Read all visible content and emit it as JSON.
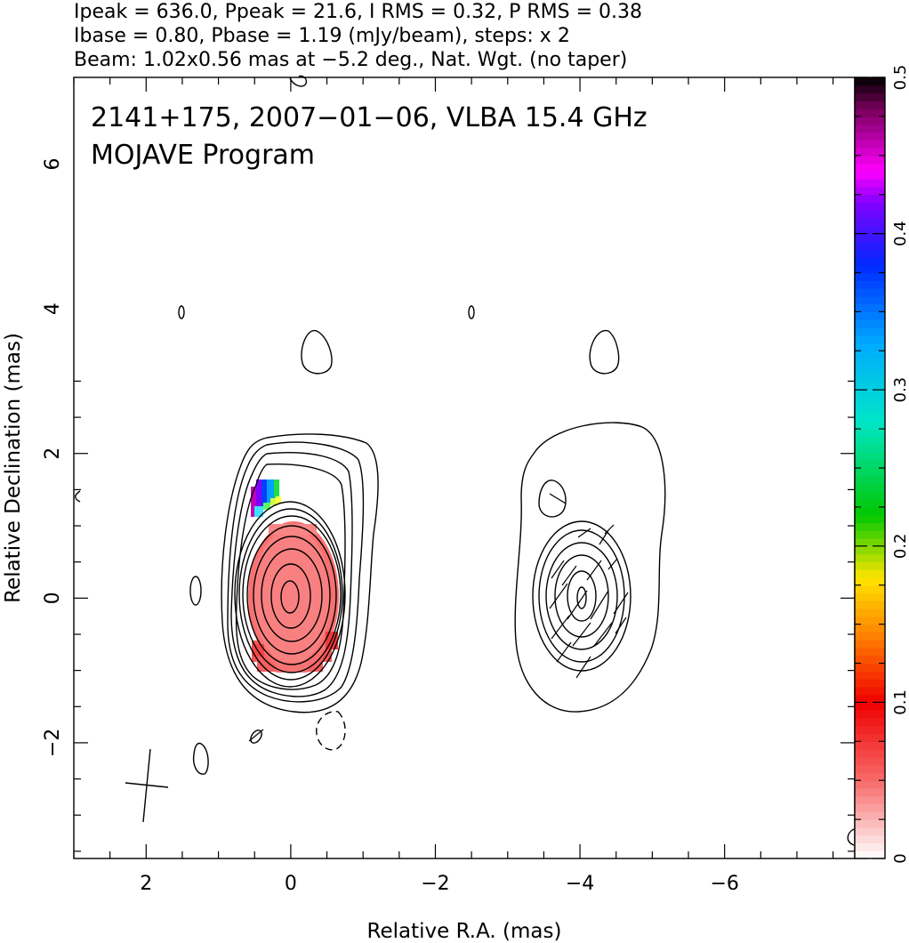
{
  "header": {
    "line1": "Ipeak = 636.0, Ppeak = 21.6, I RMS = 0.32, P RMS = 0.38",
    "line2": "Ibase = 0.80, Pbase = 1.19 (mJy/beam), steps: x 2",
    "line3": "Beam: 1.02x0.56 mas at −5.2 deg., Nat. Wgt. (no taper)"
  },
  "annotations": {
    "source": "2141+175, 2007−01−06, VLBA 15.4 GHz",
    "program": "MOJAVE Program"
  },
  "chart_data": {
    "type": "heatmap",
    "description_kind": "VLBA total intensity contour map with fractional polarization color overlay and EVPA ticks",
    "xlabel": "Relative R.A. (mas)",
    "ylabel": "Relative Declination (mas)",
    "xlim": [
      3.0,
      -7.8
    ],
    "ylim": [
      -3.6,
      7.2
    ],
    "x_ticks": [
      2,
      0,
      -2,
      -4,
      -6
    ],
    "x_tick_labels": [
      "2",
      "0",
      "−2",
      "−4",
      "−6"
    ],
    "y_ticks": [
      -2,
      0,
      2,
      4,
      6
    ],
    "y_tick_labels": [
      "−2",
      "0",
      "2",
      "4",
      "6"
    ],
    "colorbar": {
      "min": 0,
      "max": 0.5,
      "ticks": [
        0,
        0.1,
        0.2,
        0.3,
        0.4,
        0.5
      ],
      "tick_labels": [
        "0",
        "0.1",
        "0.2",
        "0.3",
        "0.4",
        "0.5"
      ]
    },
    "left_panel": {
      "center": [
        0.0,
        0.0
      ],
      "contour_base_mJy": 0.8,
      "contour_step_factor": 2,
      "peak_mJy": 636.0
    },
    "right_panel": {
      "center": [
        -4.0,
        0.0
      ],
      "contour_base_mJy": 1.19,
      "contour_step_factor": 2,
      "peak_mJy": 21.6
    },
    "beam": {
      "major_mas": 1.02,
      "minor_mas": 0.56,
      "pa_deg": -5.2
    },
    "grid": false,
    "legend": "none"
  },
  "colors": {
    "contour": "#000000",
    "polarization_core": "#f98080",
    "polarization_edge": "#f44848"
  }
}
